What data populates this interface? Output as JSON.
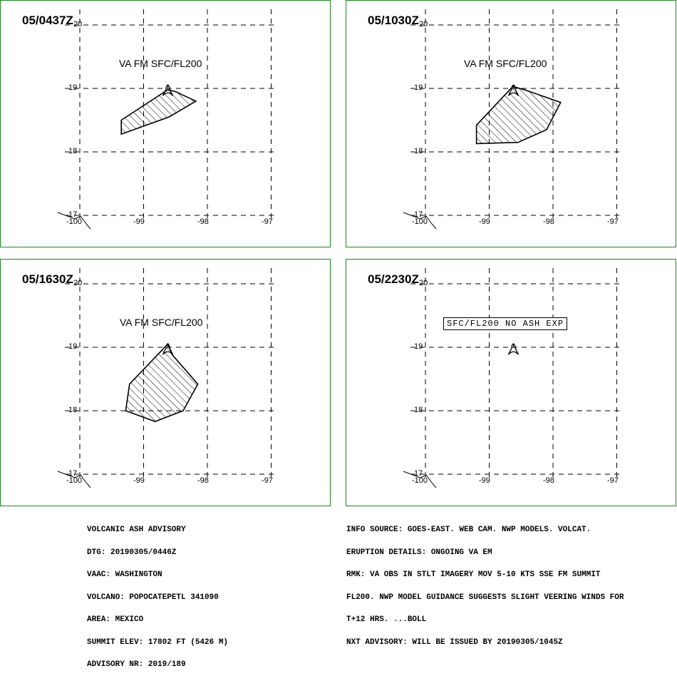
{
  "panels": [
    {
      "time": "05/0437Z",
      "label": "VA FM SFC/FL200",
      "noash": "",
      "polygon": [
        [
          -99.35,
          18.5
        ],
        [
          -99.35,
          18.28
        ],
        [
          -98.6,
          18.55
        ],
        [
          -98.18,
          18.8
        ],
        [
          -98.5,
          18.95
        ],
        [
          -98.62,
          18.98
        ]
      ]
    },
    {
      "time": "05/1030Z",
      "label": "VA FM SFC/FL200",
      "noash": "",
      "polygon": [
        [
          -99.2,
          18.42
        ],
        [
          -99.2,
          18.13
        ],
        [
          -98.55,
          18.15
        ],
        [
          -98.1,
          18.35
        ],
        [
          -97.88,
          18.78
        ],
        [
          -98.45,
          18.98
        ],
        [
          -98.63,
          19.03
        ]
      ]
    },
    {
      "time": "05/1630Z",
      "label": "VA FM SFC/FL200",
      "noash": "",
      "polygon": [
        [
          -99.22,
          18.42
        ],
        [
          -99.28,
          18.0
        ],
        [
          -98.82,
          17.83
        ],
        [
          -98.38,
          18.0
        ],
        [
          -98.15,
          18.42
        ],
        [
          -98.55,
          18.88
        ],
        [
          -98.62,
          19.05
        ]
      ]
    },
    {
      "time": "05/2230Z",
      "label": "",
      "noash": "SFC/FL200 NO ASH EXP",
      "polygon": []
    }
  ],
  "axes": {
    "lat_ticks": [
      "20",
      "19",
      "18",
      "17"
    ],
    "lon_ticks": [
      "-100",
      "-99",
      "-98",
      "-97"
    ],
    "lat_range": [
      17,
      20
    ],
    "lon_range": [
      -100,
      -97
    ]
  },
  "volcano": {
    "lon": -98.62,
    "lat": 19.02
  },
  "advisory_left": [
    "VOLCANIC ASH ADVISORY",
    "DTG: 20190305/0446Z",
    "VAAC: WASHINGTON",
    "VOLCANO: POPOCATEPETL 341090",
    "AREA: MEXICO",
    "SUMMIT ELEV: 17802 FT (5426 M)",
    "ADVISORY NR: 2019/189"
  ],
  "advisory_right": [
    "INFO SOURCE: GOES-EAST. WEB CAM. NWP MODELS. VOLCAT.",
    "ERUPTION DETAILS: ONGOING VA EM",
    "RMK: VA OBS IN STLT IMAGERY MOV 5-10 KTS SSE FM SUMMIT",
    "FL200. NWP MODEL GUIDANCE SUGGESTS SLIGHT VEERING WINDS FOR",
    "T+12 HRS. ...BOLL",
    "NXT ADVISORY: WILL BE ISSUED BY 20190305/1045Z"
  ]
}
